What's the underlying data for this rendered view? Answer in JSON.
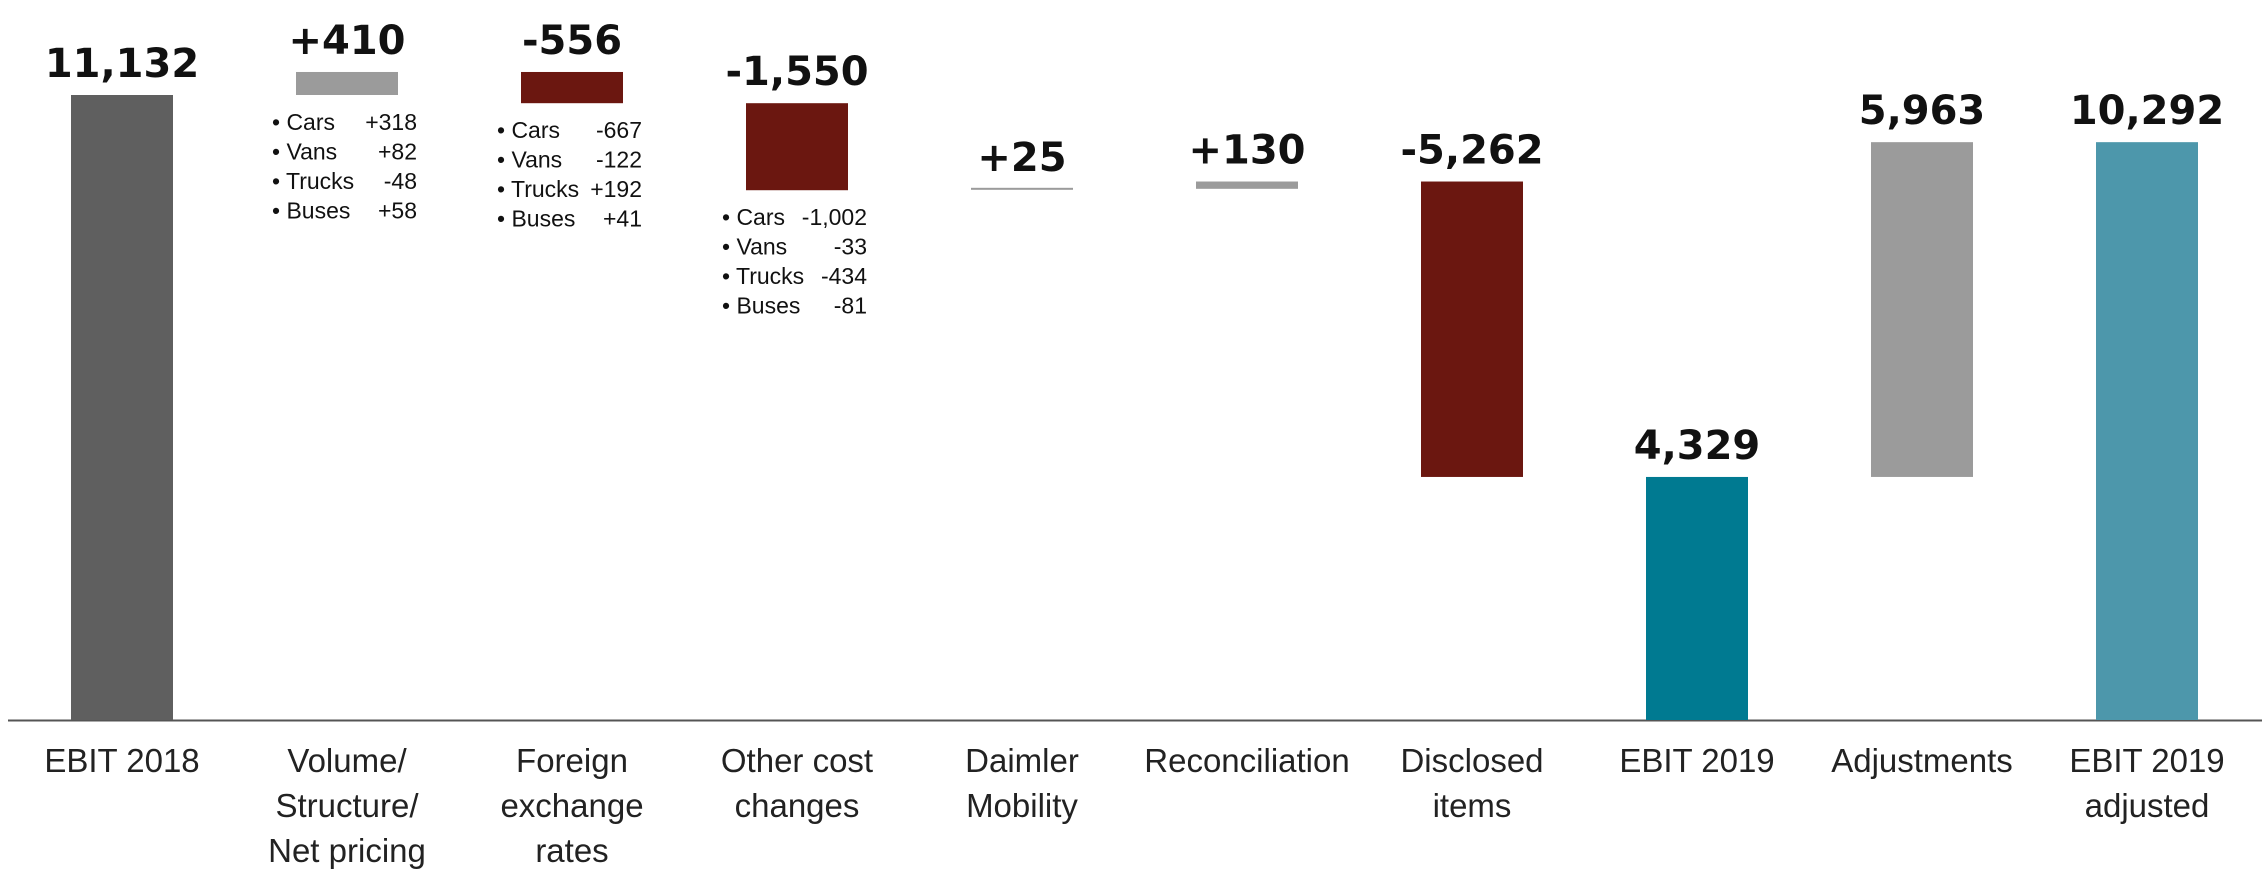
{
  "chart_data": {
    "type": "bar",
    "subtype": "waterfall",
    "title": "",
    "xlabel": "",
    "ylabel": "",
    "ylim": [
      0,
      11132
    ],
    "grid": false,
    "legend": "none",
    "colors": {
      "total_dark": "#5f5f5f",
      "increase": "#9b9b9b",
      "decrease": "#6b1710",
      "total_teal": "#007a91",
      "adjusted_teal": "#4d97ab",
      "axis": "#555555"
    },
    "bars": [
      {
        "category": [
          "EBIT 2018"
        ],
        "label": "11,132",
        "base": 0,
        "top": 11132,
        "kind": "total_dark",
        "details": []
      },
      {
        "category": [
          "Volume/",
          "Structure/",
          "Net pricing"
        ],
        "label": "+410",
        "base": 11132,
        "top": 11542,
        "kind": "increase",
        "details": [
          {
            "segment": "Cars",
            "value": "+318"
          },
          {
            "segment": "Vans",
            "value": "+82"
          },
          {
            "segment": "Trucks",
            "value": "-48"
          },
          {
            "segment": "Buses",
            "value": "+58"
          }
        ]
      },
      {
        "category": [
          "Foreign",
          "exchange",
          "rates"
        ],
        "label": "-556",
        "base": 10986,
        "top": 11542,
        "kind": "decrease",
        "details": [
          {
            "segment": "Cars",
            "value": "-667"
          },
          {
            "segment": "Vans",
            "value": "-122"
          },
          {
            "segment": "Trucks",
            "value": "+192"
          },
          {
            "segment": "Buses",
            "value": "+41"
          }
        ]
      },
      {
        "category": [
          "Other cost",
          "changes"
        ],
        "label": "-1,550",
        "base": 9436,
        "top": 10986,
        "kind": "decrease",
        "details": [
          {
            "segment": "Cars",
            "value": "-1,002"
          },
          {
            "segment": "Vans",
            "value": "-33"
          },
          {
            "segment": "Trucks",
            "value": "-434"
          },
          {
            "segment": "Buses",
            "value": "-81"
          }
        ]
      },
      {
        "category": [
          "Daimler",
          "Mobility"
        ],
        "label": "+25",
        "base": 9436,
        "top": 9461,
        "kind": "increase",
        "details": []
      },
      {
        "category": [
          "Reconciliation"
        ],
        "label": "+130",
        "base": 9461,
        "top": 9591,
        "kind": "increase",
        "details": []
      },
      {
        "category": [
          "Disclosed",
          "items"
        ],
        "label": "-5,262",
        "base": 4329,
        "top": 9591,
        "kind": "decrease",
        "details": []
      },
      {
        "category": [
          "EBIT 2019"
        ],
        "label": "4,329",
        "base": 0,
        "top": 4329,
        "kind": "total_teal",
        "details": []
      },
      {
        "category": [
          "Adjustments"
        ],
        "label": "5,963",
        "base": 4329,
        "top": 10292,
        "kind": "increase",
        "details": []
      },
      {
        "category": [
          "EBIT 2019",
          "adjusted"
        ],
        "label": "10,292",
        "base": 0,
        "top": 10292,
        "kind": "adjusted_teal",
        "details": []
      }
    ]
  }
}
